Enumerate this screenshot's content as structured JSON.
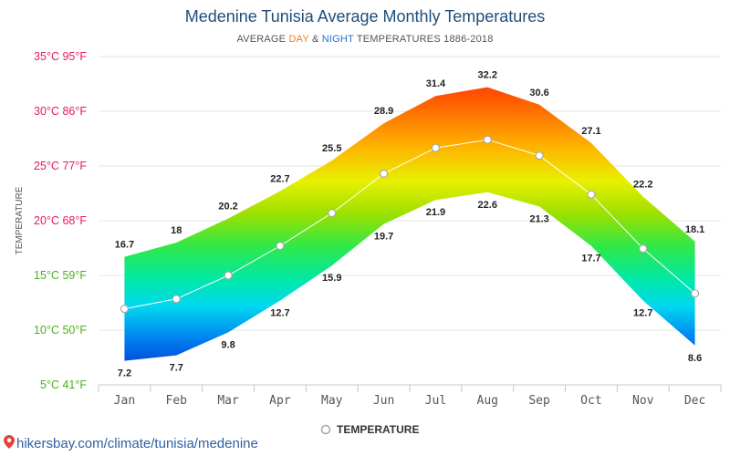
{
  "title": "Medenine Tunisia Average Monthly Temperatures",
  "subtitle": {
    "prefix": "AVERAGE ",
    "day": "DAY",
    "mid": " & ",
    "night": "NIGHT",
    "suffix": " TEMPERATURES 1886-2018"
  },
  "footer": {
    "text": "hikersbay.com/climate/tunisia/medenine"
  },
  "colors": {
    "day": "#f07d1a",
    "night": "#2a6fc9",
    "title": "#1f4e79",
    "line": "#ffffff",
    "marker_stroke": "#a8a8a8"
  },
  "chart_data": {
    "type": "area",
    "categories": [
      "Jan",
      "Feb",
      "Mar",
      "Apr",
      "May",
      "Jun",
      "Jul",
      "Aug",
      "Sep",
      "Oct",
      "Nov",
      "Dec"
    ],
    "day": [
      16.7,
      18,
      20.2,
      22.7,
      25.5,
      28.9,
      31.4,
      32.2,
      30.6,
      27.1,
      22.2,
      18.1
    ],
    "night": [
      7.2,
      7.7,
      9.8,
      12.7,
      15.9,
      19.7,
      21.9,
      22.6,
      21.3,
      17.7,
      12.7,
      8.6
    ],
    "day_labels": [
      "16.7",
      "18",
      "20.2",
      "22.7",
      "25.5",
      "28.9",
      "31.4",
      "32.2",
      "30.6",
      "27.1",
      "22.2",
      "18.1"
    ],
    "night_labels": [
      "7.2",
      "7.7",
      "9.8",
      "12.7",
      "15.9",
      "19.7",
      "21.9",
      "22.6",
      "21.3",
      "17.7",
      "12.7",
      "8.6"
    ],
    "series": [
      {
        "name": "TEMPERATURE",
        "values": [
          11.95,
          12.85,
          15,
          17.7,
          20.7,
          24.3,
          26.65,
          27.4,
          25.95,
          22.4,
          17.45,
          13.35
        ]
      }
    ],
    "ylabel": "TEMPERATURE",
    "ylim": [
      5,
      35
    ],
    "y_ticks": [
      {
        "value": 35,
        "label": "35°C 95°F",
        "color": "#e8195a"
      },
      {
        "value": 30,
        "label": "30°C 86°F",
        "color": "#e8195a"
      },
      {
        "value": 25,
        "label": "25°C 77°F",
        "color": "#e8195a"
      },
      {
        "value": 20,
        "label": "20°C 68°F",
        "color": "#e8195a"
      },
      {
        "value": 15,
        "label": "15°C 59°F",
        "color": "#4caf1c"
      },
      {
        "value": 10,
        "label": "10°C 50°F",
        "color": "#4caf1c"
      },
      {
        "value": 5,
        "label": "5°C 41°F",
        "color": "#4caf1c"
      }
    ],
    "grid": true,
    "legend": "bottom-center"
  }
}
